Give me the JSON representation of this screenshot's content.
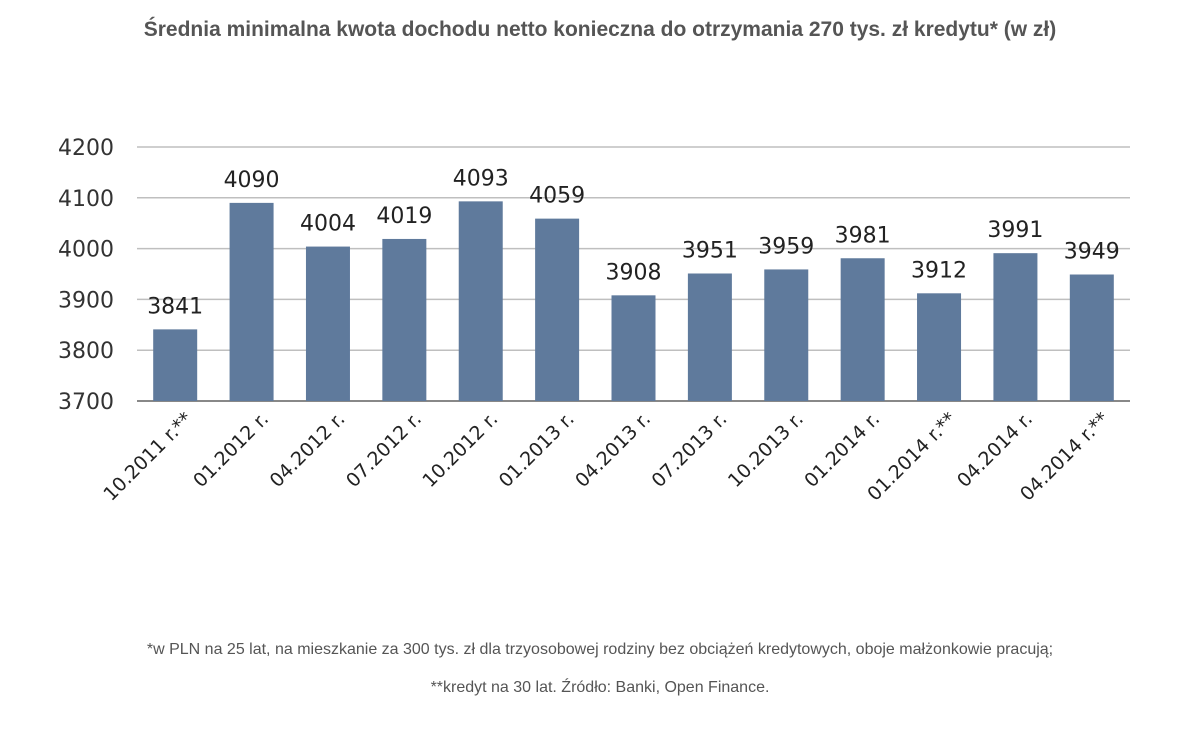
{
  "title": "Średnia minimalna kwota dochodu netto konieczna do otrzymania 270 tys. zł kredytu* (w zł)",
  "footnotes": [
    "*w PLN na 25 lat, na mieszkanie za 300 tys. zł dla trzyosobowej rodziny bez obciążeń kredytowych, oboje małżonkowie pracują;",
    "**kredyt na 30 lat. Źródło: Banki, Open Finance."
  ],
  "colors": {
    "bar": "#5f7a9c",
    "grid": "#bfbfbf",
    "axis": "#888888"
  },
  "chart_data": {
    "type": "bar",
    "title": "Średnia minimalna kwota dochodu netto konieczna do otrzymania 270 tys. zł kredytu* (w zł)",
    "categories": [
      "10.2011 r.**",
      "01.2012 r.",
      "04.2012 r.",
      "07.2012 r.",
      "10.2012 r.",
      "01.2013 r.",
      "04.2013 r.",
      "07.2013 r.",
      "10.2013 r.",
      "01.2014 r.",
      "01.2014 r.**",
      "04.2014 r.",
      "04.2014 r.**"
    ],
    "values": [
      3841,
      4090,
      4004,
      4019,
      4093,
      4059,
      3908,
      3951,
      3959,
      3981,
      3912,
      3991,
      3949
    ],
    "ylim": [
      3700,
      4200
    ],
    "yticks": [
      3700,
      3800,
      3900,
      4000,
      4100,
      4200
    ],
    "grid": true,
    "legend": "none",
    "data_labels": true
  }
}
